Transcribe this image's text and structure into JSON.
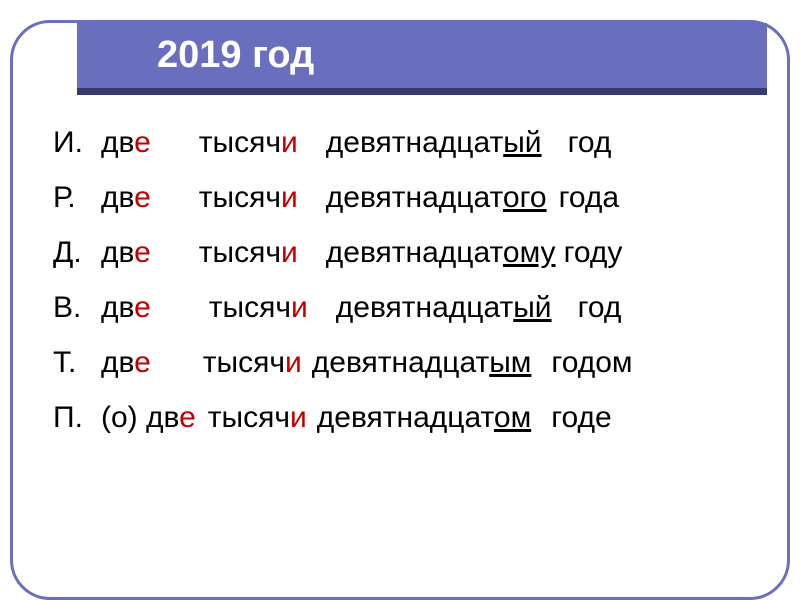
{
  "colors": {
    "frame_border": "#6a6ebf",
    "title_bg": "#6a6ebf",
    "title_underline": "#3a3a6a",
    "title_text": "#ffffff",
    "body_text": "#000000",
    "highlight": "#c00000"
  },
  "title": "2019 год",
  "typography": {
    "title_fontsize": 38,
    "body_fontsize": 30,
    "font_family": "Arial, sans-serif"
  },
  "rows": [
    {
      "case": "И.",
      "w1_pre": "дв",
      "w1_hl": "е",
      "w1_post": "",
      "gap1": 48,
      "w2_pre": "тысяч",
      "w2_hl": "и",
      "w2_post": "",
      "gap2": 28,
      "w3_stem": "девятнадцат",
      "w3_end": "ый",
      "gap3": 26,
      "w4": "год"
    },
    {
      "case": "Р.",
      "w1_pre": "дв",
      "w1_hl": "е",
      "w1_post": "",
      "gap1": 48,
      "w2_pre": "тысяч",
      "w2_hl": "и",
      "w2_post": "",
      "gap2": 28,
      "w3_stem": "девятнадцат",
      "w3_end": "ого",
      "gap3": 12,
      "w4": "года"
    },
    {
      "case": "Д.",
      "w1_pre": "дв",
      "w1_hl": "е",
      "w1_post": "",
      "gap1": 48,
      "w2_pre": "тысяч",
      "w2_hl": "и",
      "w2_post": "",
      "gap2": 28,
      "w3_stem": "девятнадцат",
      "w3_end": "ому",
      "gap3": 8,
      "w4": "году"
    },
    {
      "case": "В.",
      "w1_pre": "дв",
      "w1_hl": "е",
      "w1_post": "",
      "gap1": 58,
      "w2_pre": "тысяч",
      "w2_hl": "и",
      "w2_post": "",
      "gap2": 28,
      "w3_stem": "девятнадцат",
      "w3_end": "ый",
      "gap3": 26,
      "w4": "год"
    },
    {
      "case": "Т.",
      "w1_pre": "дв",
      "w1_hl": "е",
      "w1_post": "",
      "gap1": 52,
      "w2_pre": "тысяч",
      "w2_hl": "и",
      "w2_post": "",
      "gap2": 10,
      "w3_stem": "девятнадцат",
      "w3_end": "ым",
      "gap3": 20,
      "w4": "годом"
    },
    {
      "case": "П.",
      "w1_pre": "(о) дв",
      "w1_hl": "е",
      "w1_post": "",
      "gap1": 12,
      "w2_pre": "тысяч",
      "w2_hl": "и",
      "w2_post": "",
      "gap2": 10,
      "w3_stem": "девятнадцат",
      "w3_end": "ом",
      "gap3": 20,
      "w4": "годе"
    }
  ]
}
